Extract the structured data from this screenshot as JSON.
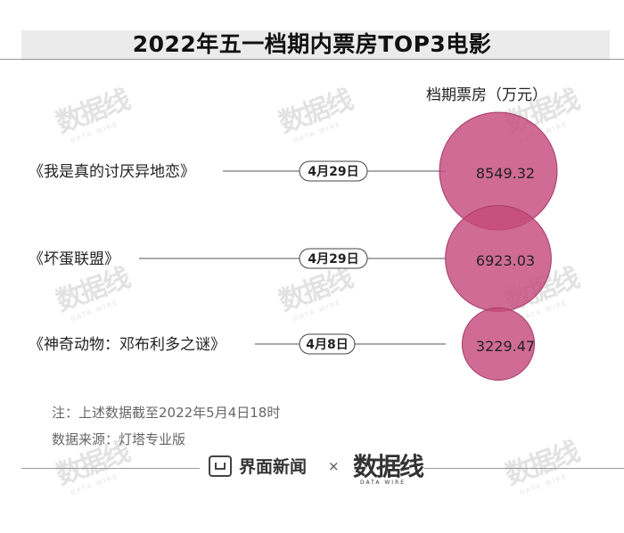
{
  "watermark_text": "数据线",
  "watermark_subtext": "DATA WIRE",
  "chart_data": {
    "type": "bubble",
    "title": "2022年五一档期内票房TOP3电影",
    "value_label": "档期票房（万元）",
    "items": [
      {
        "name": "《我是真的讨厌异地恋》",
        "date": "4月29日",
        "value": 8549.32,
        "value_label": "8549.32"
      },
      {
        "name": "《坏蛋联盟》",
        "date": "4月29日",
        "value": 6923.03,
        "value_label": "6923.03"
      },
      {
        "name": "《神奇动物：邓布利多之谜》",
        "date": "4月8日",
        "value": 3229.47,
        "value_label": "3229.47"
      }
    ],
    "colors": {
      "bubble": "#c44b7c",
      "bubble_stroke": "#a63a66",
      "text": "#222222",
      "line": "#555555"
    }
  },
  "notes": {
    "note": "注：上述数据截至2022年5月4日18时",
    "source": "数据来源：灯塔专业版"
  },
  "footer": {
    "brand": "界面新闻",
    "times": "×",
    "partner": "数据线",
    "partner_sub": "DATA WIRE"
  }
}
